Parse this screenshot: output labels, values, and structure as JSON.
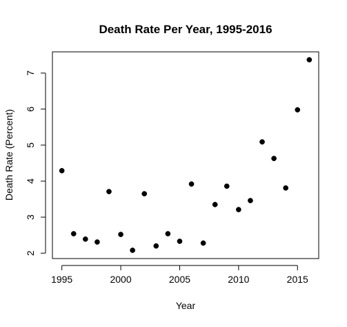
{
  "chart_data": {
    "type": "scatter",
    "title": "Death Rate Per Year, 1995-2016",
    "xlabel": "Year",
    "ylabel": "Death Rate (Percent)",
    "x_ticks": [
      1995,
      2000,
      2005,
      2010,
      2015
    ],
    "x_tick_labels": [
      "1995",
      "2000",
      "2005",
      "2010",
      "2015"
    ],
    "y_ticks": [
      2,
      3,
      4,
      5,
      6,
      7
    ],
    "y_tick_labels": [
      "2",
      "3",
      "4",
      "5",
      "6",
      "7"
    ],
    "xlim": [
      1994.2,
      2016.8
    ],
    "ylim": [
      1.85,
      7.59
    ],
    "grid": false,
    "legend": "none",
    "marker_color": "#000000",
    "series": [
      {
        "x": [
          1995,
          1996,
          1997,
          1998,
          1999,
          2000,
          2001,
          2002,
          2003,
          2004,
          2005,
          2006,
          2007,
          2008,
          2009,
          2010,
          2011,
          2012,
          2013,
          2014,
          2015,
          2016
        ],
        "y": [
          4.29,
          2.54,
          2.39,
          2.31,
          3.71,
          2.52,
          2.08,
          3.65,
          2.2,
          2.54,
          2.33,
          3.92,
          2.28,
          3.35,
          3.86,
          3.21,
          3.46,
          5.09,
          4.63,
          3.81,
          5.98,
          7.37
        ]
      }
    ]
  }
}
